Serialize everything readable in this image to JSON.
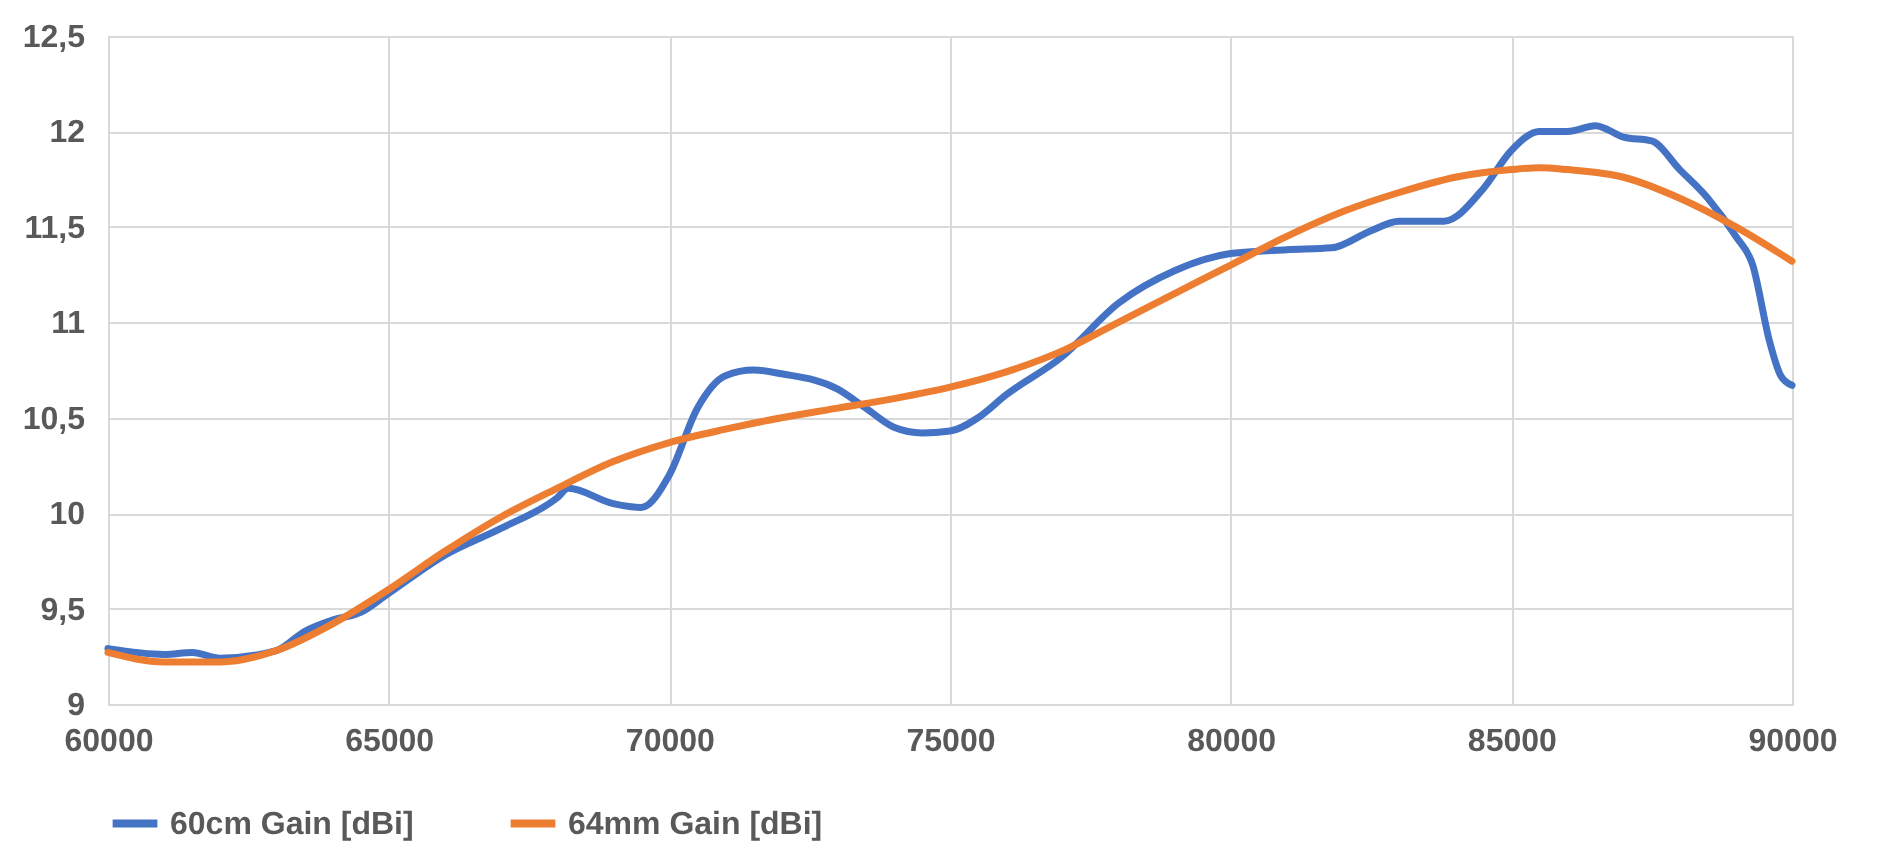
{
  "chart_data": {
    "type": "line",
    "xlim": [
      60000,
      90000
    ],
    "xticks": [
      60000,
      65000,
      70000,
      75000,
      80000,
      85000,
      90000
    ],
    "ylim": [
      9,
      12.5
    ],
    "yticks": [
      {
        "value": 9,
        "label": "9"
      },
      {
        "value": 9.5,
        "label": "9,5"
      },
      {
        "value": 10,
        "label": "10"
      },
      {
        "value": 10.5,
        "label": "10,5"
      },
      {
        "value": 11,
        "label": "11"
      },
      {
        "value": 11.5,
        "label": "11,5"
      },
      {
        "value": 12,
        "label": "12"
      },
      {
        "value": 12.5,
        "label": "12,5"
      }
    ],
    "grid": true,
    "legend": "bottom",
    "marker": "none",
    "line_style": "solid",
    "series": [
      {
        "name": "60cm Gain [dBi]",
        "color": "#4472c4",
        "x": [
          60000,
          61000,
          61500,
          62000,
          63000,
          63500,
          64000,
          64500,
          65000,
          66000,
          67000,
          68000,
          68200,
          69000,
          69500,
          70000,
          70500,
          71000,
          71500,
          72000,
          73000,
          73500,
          74000,
          74500,
          75000,
          75500,
          76000,
          77000,
          78000,
          79000,
          80000,
          81000,
          81800,
          82500,
          83000,
          83800,
          84500,
          85000,
          85500,
          86000,
          86500,
          87000,
          87500,
          88000,
          88500,
          89000,
          89300,
          89600,
          89800,
          90000
        ],
        "values": [
          9.29,
          9.26,
          9.27,
          9.24,
          9.28,
          9.38,
          9.44,
          9.48,
          9.58,
          9.78,
          9.92,
          10.08,
          10.13,
          10.05,
          10.03,
          10.2,
          10.55,
          10.72,
          10.75,
          10.73,
          10.65,
          10.55,
          10.45,
          10.42,
          10.43,
          10.5,
          10.62,
          10.82,
          11.1,
          11.27,
          11.36,
          11.38,
          11.39,
          11.48,
          11.53,
          11.53,
          11.7,
          11.9,
          12.0,
          12.0,
          12.03,
          11.97,
          11.95,
          11.8,
          11.65,
          11.45,
          11.3,
          10.9,
          10.72,
          10.67
        ]
      },
      {
        "name": "64mm Gain [dBi]",
        "color": "#ed7d31",
        "x": [
          60000,
          61000,
          62000,
          63000,
          64000,
          65000,
          66000,
          67000,
          68000,
          69000,
          70000,
          71000,
          72000,
          73000,
          74000,
          75000,
          76000,
          77000,
          78000,
          79000,
          80000,
          81000,
          82000,
          83000,
          84000,
          85000,
          85500,
          86000,
          87000,
          88000,
          89000,
          90000
        ],
        "values": [
          9.27,
          9.22,
          9.22,
          9.28,
          9.42,
          9.6,
          9.8,
          9.98,
          10.13,
          10.27,
          10.37,
          10.44,
          10.5,
          10.55,
          10.6,
          10.66,
          10.74,
          10.85,
          11.0,
          11.15,
          11.3,
          11.45,
          11.58,
          11.68,
          11.76,
          11.8,
          11.81,
          11.8,
          11.76,
          11.65,
          11.5,
          11.32
        ]
      }
    ]
  }
}
